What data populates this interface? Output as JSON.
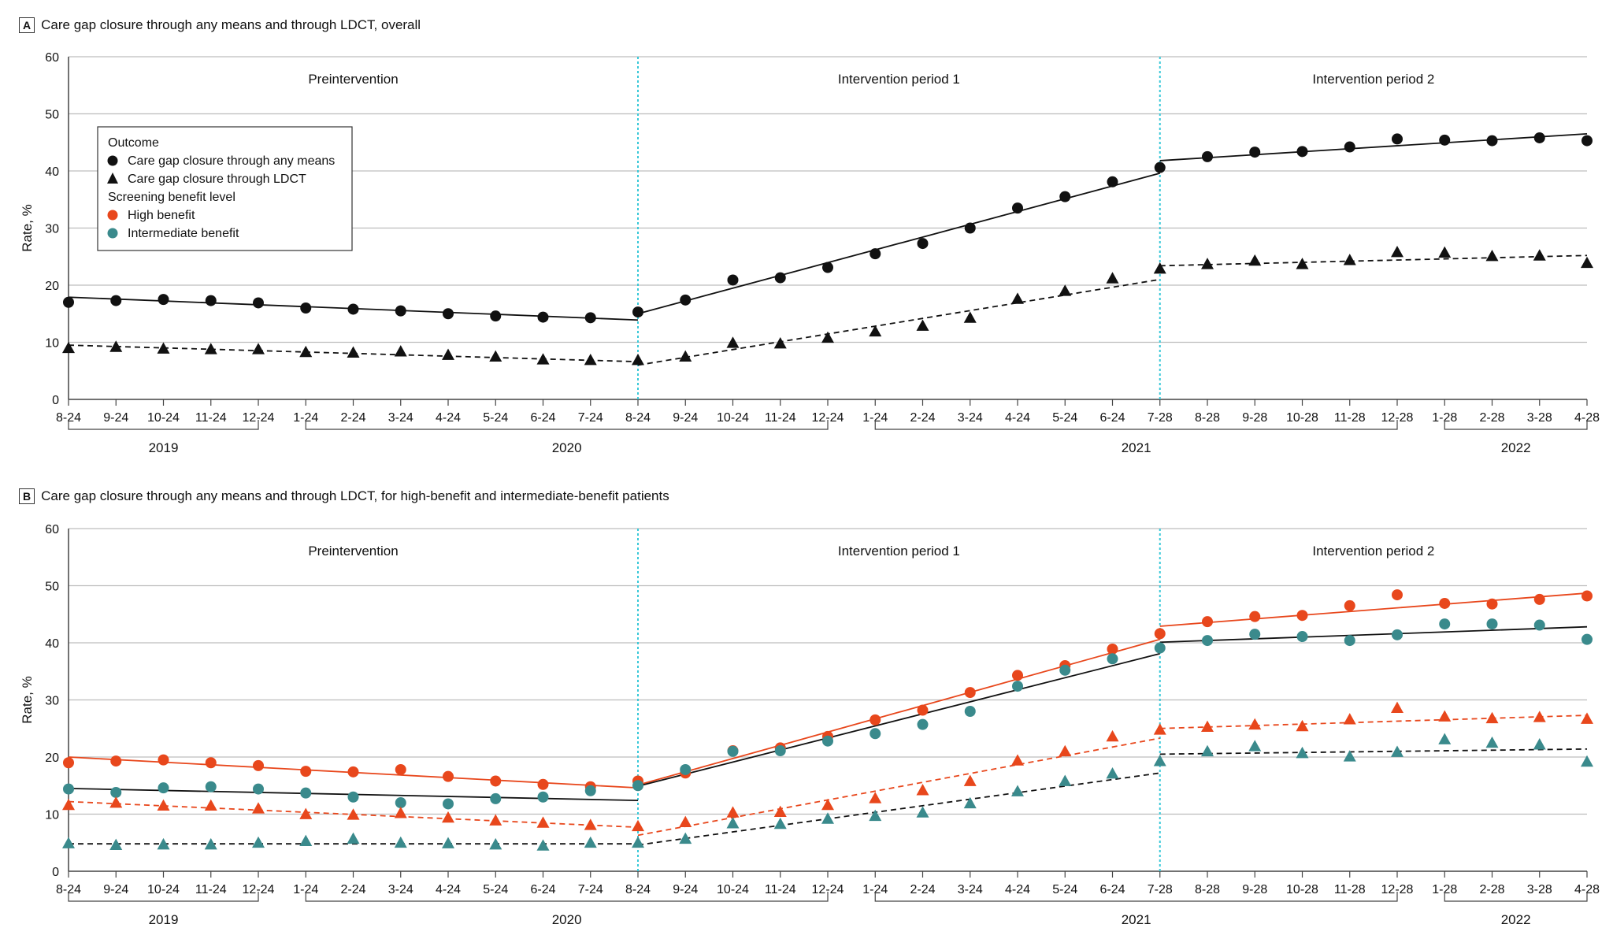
{
  "chart_data": [
    {
      "type": "scatter",
      "panel": "A",
      "title": "Care gap closure through any means and through LDCT, overall",
      "ylabel": "Rate, %",
      "ylim": [
        0,
        60
      ],
      "yticks": [
        0,
        10,
        20,
        30,
        40,
        50,
        60
      ],
      "grid": true,
      "x_labels": [
        "8-24",
        "9-24",
        "10-24",
        "11-24",
        "12-24",
        "1-24",
        "2-24",
        "3-24",
        "4-24",
        "5-24",
        "6-24",
        "7-24",
        "8-24",
        "9-24",
        "10-24",
        "11-24",
        "12-24",
        "1-24",
        "2-24",
        "3-24",
        "4-24",
        "5-24",
        "6-24",
        "7-28",
        "8-28",
        "9-28",
        "10-28",
        "11-28",
        "12-28",
        "1-28",
        "2-28",
        "3-28",
        "4-28"
      ],
      "years": [
        "2019",
        "2020",
        "2021",
        "2022"
      ],
      "periods": [
        "Preintervention",
        "Intervention period 1",
        "Intervention period 2"
      ],
      "legend": {
        "outcome_title": "Outcome",
        "outcome_items": [
          {
            "label": "Care gap closure through any means",
            "marker": "circle"
          },
          {
            "label": "Care gap closure through LDCT",
            "marker": "triangle"
          }
        ],
        "level_title": "Screening benefit level",
        "level_items": [
          {
            "label": "High benefit",
            "color": "#e8471c"
          },
          {
            "label": "Intermediate benefit",
            "color": "#3a8a8c"
          }
        ]
      },
      "series": [
        {
          "marker": "circle",
          "color": "#111111",
          "line": "solid",
          "values": [
            17.0,
            17.3,
            17.5,
            17.3,
            16.9,
            16.0,
            15.8,
            15.5,
            15.0,
            14.6,
            14.4,
            14.3,
            15.3,
            17.4,
            20.9,
            21.3,
            23.1,
            25.5,
            27.3,
            30.0,
            33.5,
            35.5,
            38.1,
            40.6,
            42.5,
            43.3,
            43.4,
            44.2,
            45.6,
            45.4,
            45.3,
            45.8,
            45.3
          ],
          "fit": [
            [
              0,
              17.9,
              12,
              13.9
            ],
            [
              12,
              15.0,
              23,
              39.6
            ],
            [
              23,
              41.8,
              32,
              46.5
            ]
          ]
        },
        {
          "marker": "triangle",
          "color": "#111111",
          "line": "dashed",
          "values": [
            9.0,
            9.2,
            8.9,
            8.8,
            8.8,
            8.3,
            8.2,
            8.4,
            7.8,
            7.5,
            7.0,
            6.9,
            6.9,
            7.5,
            9.9,
            9.8,
            10.8,
            11.9,
            12.9,
            14.3,
            17.6,
            19.0,
            21.2,
            22.9,
            23.7,
            24.3,
            23.7,
            24.4,
            25.8,
            25.7,
            25.1,
            25.2,
            23.9
          ],
          "fit": [
            [
              0,
              9.5,
              12,
              6.6
            ],
            [
              12,
              6.0,
              23,
              21.0
            ],
            [
              23,
              23.4,
              32,
              25.2
            ]
          ]
        }
      ]
    },
    {
      "type": "scatter",
      "panel": "B",
      "title": "Care gap closure through any means and through LDCT, for high-benefit and intermediate-benefit patients",
      "ylabel": "Rate, %",
      "ylim": [
        0,
        60
      ],
      "yticks": [
        0,
        10,
        20,
        30,
        40,
        50,
        60
      ],
      "grid": true,
      "x_labels": [
        "8-24",
        "9-24",
        "10-24",
        "11-24",
        "12-24",
        "1-24",
        "2-24",
        "3-24",
        "4-24",
        "5-24",
        "6-24",
        "7-24",
        "8-24",
        "9-24",
        "10-24",
        "11-24",
        "12-24",
        "1-24",
        "2-24",
        "3-24",
        "4-24",
        "5-24",
        "6-24",
        "7-28",
        "8-28",
        "9-28",
        "10-28",
        "11-28",
        "12-28",
        "1-28",
        "2-28",
        "3-28",
        "4-28"
      ],
      "years": [
        "2019",
        "2020",
        "2021",
        "2022"
      ],
      "periods": [
        "Preintervention",
        "Intervention period 1",
        "Intervention period 2"
      ],
      "series": [
        {
          "marker": "circle",
          "color": "#e8471c",
          "line": "solid",
          "fit_color": "#e8471c",
          "values": [
            19.0,
            19.3,
            19.5,
            19.0,
            18.5,
            17.5,
            17.4,
            17.8,
            16.6,
            15.8,
            15.2,
            14.8,
            15.8,
            17.2,
            21.1,
            21.6,
            23.6,
            26.5,
            28.2,
            31.3,
            34.3,
            36.0,
            38.9,
            41.6,
            43.7,
            44.6,
            44.8,
            46.5,
            48.4,
            46.9,
            46.8,
            47.6,
            48.2
          ],
          "fit": [
            [
              0,
              20.0,
              12,
              14.6
            ],
            [
              12,
              15.1,
              23,
              40.6
            ],
            [
              23,
              42.9,
              32,
              48.7
            ]
          ]
        },
        {
          "marker": "circle",
          "color": "#3a8a8c",
          "line": "solid",
          "fit_color": "#111111",
          "values": [
            14.4,
            13.8,
            14.6,
            14.8,
            14.4,
            13.7,
            13.0,
            12.0,
            11.8,
            12.7,
            13.0,
            14.1,
            15.0,
            17.8,
            21.0,
            21.1,
            22.8,
            24.1,
            25.7,
            28.0,
            32.4,
            35.2,
            37.2,
            39.1,
            40.4,
            41.5,
            41.1,
            40.4,
            41.4,
            43.3,
            43.3,
            43.1,
            40.6
          ],
          "fit": [
            [
              0,
              14.5,
              12,
              12.4
            ],
            [
              12,
              14.9,
              23,
              38.1
            ],
            [
              23,
              40.1,
              32,
              42.8
            ]
          ]
        },
        {
          "marker": "triangle",
          "color": "#e8471c",
          "line": "dashed",
          "fit_color": "#e8471c",
          "values": [
            11.6,
            12.0,
            11.5,
            11.5,
            11.0,
            10.0,
            9.9,
            10.2,
            9.4,
            8.9,
            8.5,
            8.1,
            7.9,
            8.6,
            10.3,
            10.4,
            11.6,
            12.8,
            14.2,
            15.8,
            19.4,
            21.0,
            23.6,
            24.8,
            25.3,
            25.7,
            25.4,
            26.6,
            28.6,
            27.1,
            26.8,
            27.0,
            26.7
          ],
          "fit": [
            [
              0,
              12.2,
              12,
              7.7
            ],
            [
              12,
              6.3,
              23,
              23.3
            ],
            [
              23,
              25.0,
              32,
              27.3
            ]
          ]
        },
        {
          "marker": "triangle",
          "color": "#3a8a8c",
          "line": "dashed",
          "fit_color": "#111111",
          "values": [
            4.9,
            4.6,
            4.7,
            4.7,
            5.0,
            5.3,
            5.7,
            5.0,
            4.9,
            4.7,
            4.5,
            5.0,
            5.0,
            5.7,
            8.4,
            8.3,
            9.2,
            9.7,
            10.3,
            11.9,
            14.0,
            15.8,
            17.1,
            19.3,
            21.0,
            21.9,
            20.7,
            20.1,
            20.9,
            23.1,
            22.5,
            22.2,
            19.2
          ],
          "fit": [
            [
              0,
              4.8,
              12,
              4.8
            ],
            [
              12,
              4.6,
              23,
              17.2
            ],
            [
              23,
              20.5,
              32,
              21.4
            ]
          ]
        }
      ]
    }
  ]
}
